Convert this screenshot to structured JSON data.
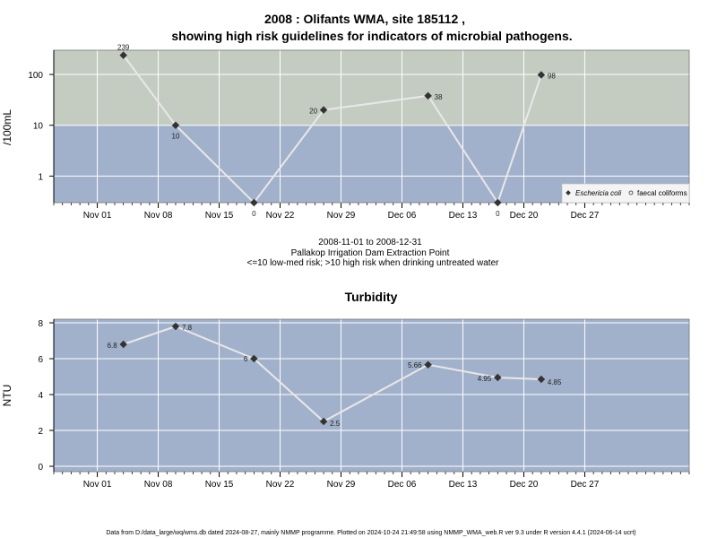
{
  "colors": {
    "high_risk_band": "#c4ccc2",
    "low_risk_band": "#a2b1cb",
    "line": "#e8e8e8",
    "marker": "#333333",
    "grid": "#ffffff"
  },
  "chart_data": [
    {
      "type": "line",
      "title_line1": "2008 : Olifants WMA, site 185112 ,",
      "title_line2": "showing high risk guidelines for indicators of microbial pathogens.",
      "xlabel": "",
      "ylabel": "/100mL",
      "y_scale": "log",
      "ylim": [
        0.3,
        300
      ],
      "y_ticks": [
        "1",
        "10",
        "100"
      ],
      "y_tick_values": [
        1,
        10,
        100
      ],
      "xlim": [
        "2008-10-27",
        "2009-01-08"
      ],
      "x_ticks": [
        "Nov 01",
        "Nov 08",
        "Nov 15",
        "Nov 22",
        "Nov 29",
        "Dec 06",
        "Dec 13",
        "Dec 20",
        "Dec 27"
      ],
      "x_tick_dates": [
        "2008-11-01",
        "2008-11-08",
        "2008-11-15",
        "2008-11-22",
        "2008-11-29",
        "2008-12-06",
        "2008-12-13",
        "2008-12-20",
        "2008-12-27"
      ],
      "high_risk_threshold": 10,
      "legend_position": "bottom-right",
      "legend": [
        "Eschericia coli",
        "faecal coliforms"
      ],
      "series": [
        {
          "name": "Eschericia coli",
          "x": [
            "2008-11-04",
            "2008-11-10",
            "2008-11-19",
            "2008-11-27",
            "2008-12-09",
            "2008-12-17",
            "2008-12-22"
          ],
          "values": [
            239,
            10,
            0,
            20,
            38,
            0,
            98
          ],
          "labels": [
            "239",
            "10",
            "0",
            "20",
            "38",
            "0",
            "98"
          ]
        }
      ]
    },
    {
      "type": "line",
      "title": "Turbidity",
      "xlabel": "",
      "ylabel": "NTU",
      "ylim": [
        -0.3,
        8.2
      ],
      "y_ticks": [
        "0",
        "2",
        "4",
        "6",
        "8"
      ],
      "y_tick_values": [
        0,
        2,
        4,
        6,
        8
      ],
      "xlim": [
        "2008-10-27",
        "2009-01-08"
      ],
      "x_ticks": [
        "Nov 01",
        "Nov 08",
        "Nov 15",
        "Nov 22",
        "Nov 29",
        "Dec 06",
        "Dec 13",
        "Dec 20",
        "Dec 27"
      ],
      "x_tick_dates": [
        "2008-11-01",
        "2008-11-08",
        "2008-11-15",
        "2008-11-22",
        "2008-11-29",
        "2008-12-06",
        "2008-12-13",
        "2008-12-20",
        "2008-12-27"
      ],
      "series": [
        {
          "x": [
            "2008-11-04",
            "2008-11-10",
            "2008-11-19",
            "2008-11-27",
            "2008-12-09",
            "2008-12-17",
            "2008-12-22"
          ],
          "values": [
            6.8,
            7.8,
            6.0,
            2.5,
            5.66,
            4.95,
            4.85
          ],
          "labels": [
            "6.8",
            "7.8",
            "6",
            "2.5",
            "5.66",
            "4.95",
            "4.85"
          ]
        }
      ]
    }
  ],
  "between": {
    "line1": "2008-11-01 to 2008-12-31",
    "line2": "Pallakop Irrigation Dam Extraction Point",
    "line3": "<=10 low-med risk; >10 high risk when drinking untreated water"
  },
  "footer": "Data from D:/data_large/wq/wms.db dated 2024-08-27, mainly NMMP programme. Plotted on 2024-10-24 21:49:58 using NMMP_WMA_web.R ver 9.3 under R version 4.4.1 (2024-06-14 ucrt)"
}
